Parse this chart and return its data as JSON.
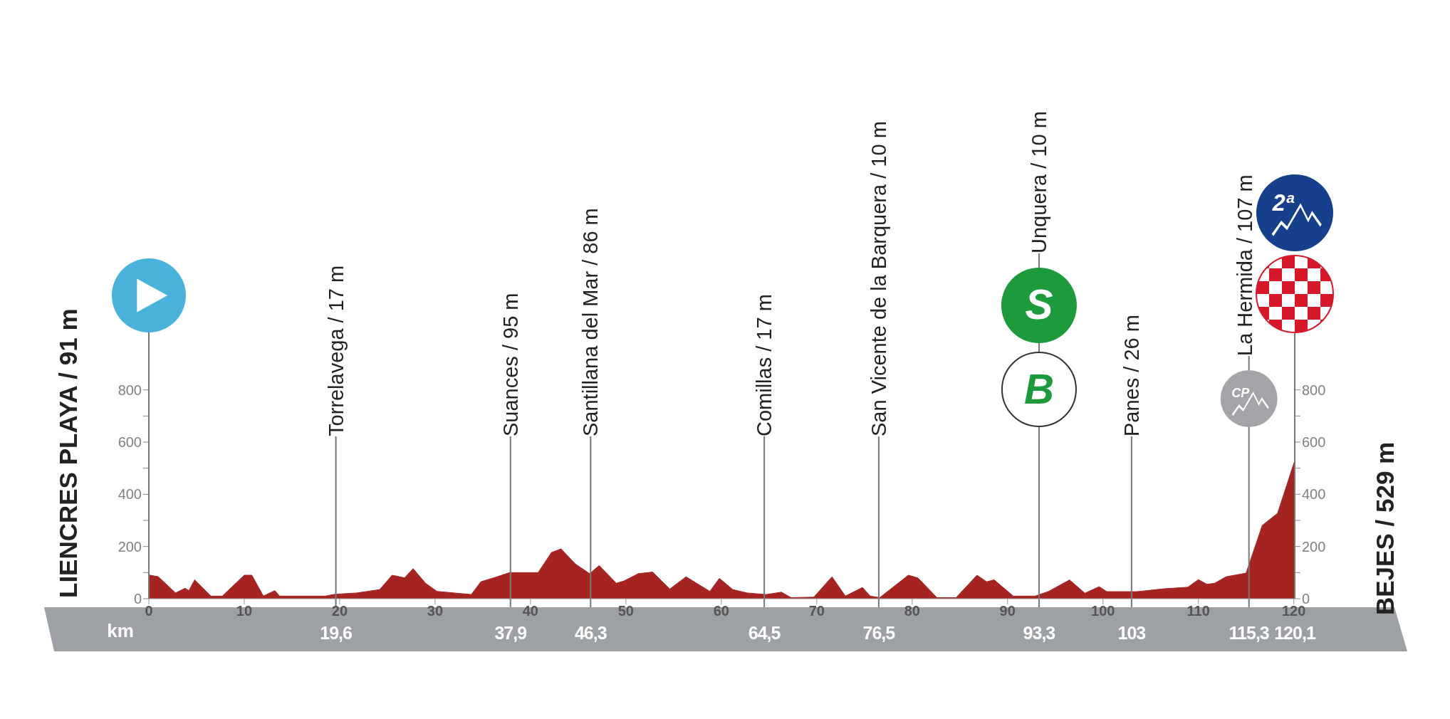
{
  "chart_data": {
    "type": "area",
    "color": "#a52422",
    "x": [
      0,
      1,
      2.8,
      3.8,
      4.2,
      4.8,
      6.5,
      7.7,
      10,
      10.8,
      12,
      13.2,
      13.7,
      18.5,
      19.5,
      21.8,
      24.2,
      25.5,
      26.8,
      27.7,
      29,
      30.2,
      33.8,
      34.8,
      36.5,
      37.8,
      40.8,
      42.2,
      43.2,
      44.7,
      46.2,
      47.2,
      49,
      49.8,
      51.3,
      52.8,
      54.6,
      56.3,
      58.8,
      59.8,
      61.2,
      62.7,
      64.7,
      66.3,
      67.3,
      69.7,
      71.6,
      73,
      74.8,
      75.6,
      76.6,
      79.6,
      80.6,
      82.6,
      84.6,
      86.8,
      87.8,
      88.6,
      90.6,
      92.9,
      94.3,
      96.5,
      98.1,
      99.6,
      100.4,
      103.6,
      106.4,
      108.9,
      110,
      110.9,
      111.7,
      112.9,
      115,
      116.7,
      118.3,
      120.1
    ],
    "values": [
      91,
      84,
      22,
      40,
      31,
      72,
      10,
      10,
      90,
      90,
      10,
      31,
      10,
      10,
      17,
      22,
      35,
      90,
      80,
      115,
      59,
      28,
      16,
      65,
      84,
      100,
      100,
      177,
      191,
      133,
      96,
      127,
      59,
      68,
      96,
      102,
      37,
      84,
      28,
      78,
      35,
      22,
      16,
      25,
      4,
      6,
      84,
      10,
      43,
      10,
      4,
      90,
      80,
      4,
      4,
      90,
      65,
      72,
      10,
      10,
      28,
      72,
      21,
      46,
      27,
      27,
      38,
      44,
      73,
      55,
      59,
      84,
      98,
      281,
      327,
      529
    ],
    "ylabel": "LIENCRES PLAYA / 91 m",
    "y2label": "BEJES / 529 m",
    "x2label": "km",
    "xlim": [
      0,
      120.1
    ],
    "xticks": [
      0,
      10,
      20,
      30,
      40,
      50,
      60,
      70,
      80,
      90,
      100,
      110,
      120
    ],
    "ylim": [
      0,
      1020
    ],
    "yticks": [
      0,
      {
        "value": 100,
        "label": null
      },
      200,
      {
        "value": 300,
        "label": null
      },
      400,
      {
        "value": 500,
        "label": null
      },
      600,
      {
        "value": 700,
        "label": null
      },
      800
    ],
    "y2lim": [
      0,
      1020
    ],
    "y2ticks": [
      0,
      {
        "value": 100,
        "label": null
      },
      200,
      {
        "value": 300,
        "label": null
      },
      400,
      {
        "value": 500,
        "label": null
      },
      600,
      {
        "value": 700,
        "label": null
      },
      800
    ],
    "x2lim": [
      0,
      120.1
    ],
    "x2ticks": [
      {
        "value": 19.6,
        "label": "19,6"
      },
      {
        "value": 37.9,
        "label": "37,9"
      },
      {
        "value": 46.3,
        "label": "46,3"
      },
      {
        "value": 64.5,
        "label": "64,5"
      },
      {
        "value": 76.5,
        "label": "76,5"
      },
      {
        "value": 93.3,
        "label": "93,3"
      },
      103,
      {
        "value": 115.3,
        "label": "115,3"
      },
      {
        "value": 120.1,
        "label": "120,1"
      }
    ],
    "ref_lines": [
      {
        "axis": "x",
        "value": 19.6,
        "label": "Torrelavega / 17 m"
      },
      {
        "axis": "x",
        "value": 37.9,
        "label": "Suances / 95 m"
      },
      {
        "axis": "x",
        "value": 46.3,
        "label": "Santillana del Mar / 86 m"
      },
      {
        "axis": "x",
        "value": 64.5,
        "label": "Comillas / 17 m"
      },
      {
        "axis": "x",
        "value": 76.5,
        "label": "San Vicente de la Barquera / 10 m"
      },
      {
        "axis": "x",
        "value": 93.3,
        "label": "Unquera / 10 m"
      },
      {
        "axis": "x",
        "value": 103,
        "label": "Panes / 26 m"
      },
      {
        "axis": "x",
        "value": 115.3,
        "label": "La Hermida / 107 m"
      }
    ],
    "annotations": [
      "S",
      "B",
      "2ª",
      "CP"
    ]
  }
}
